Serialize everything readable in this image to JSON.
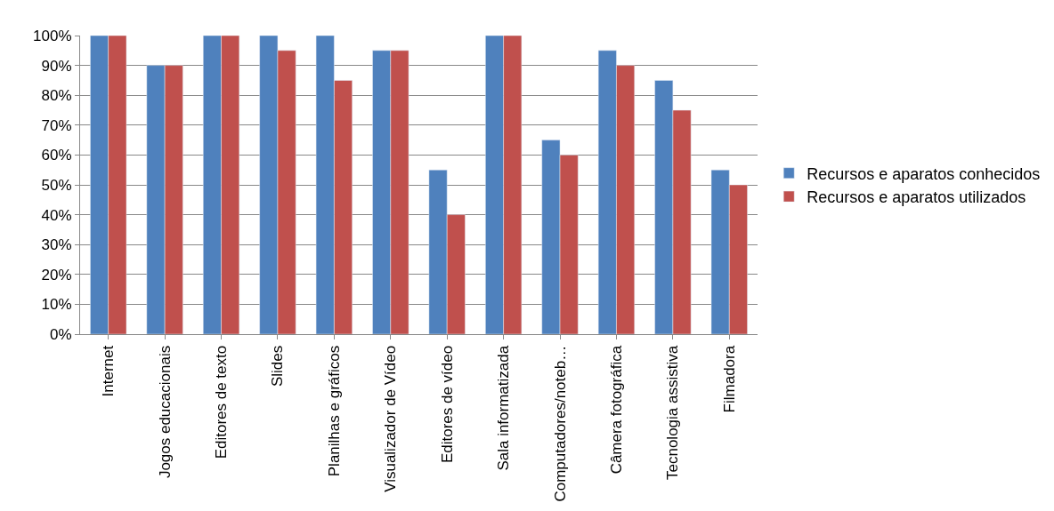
{
  "chart_data": {
    "type": "bar",
    "categories": [
      "Internet",
      "Jogos educacionais",
      "Editores de texto",
      "Slides",
      "Planilhas e gráficos",
      "Visualizador de Vídeo",
      "Editores de vídeo",
      "Sala informatizada",
      "Computadores/noteb…",
      "Câmera fotográfica",
      "Tecnologia assistiva",
      "Filmadora"
    ],
    "series": [
      {
        "name": "Recursos e aparatos conhecidos",
        "color": "#4f81bd",
        "values": [
          100,
          90,
          100,
          100,
          100,
          95,
          55,
          100,
          65,
          95,
          85,
          55
        ]
      },
      {
        "name": "Recursos e aparatos utilizados",
        "color": "#c0504d",
        "values": [
          100,
          90,
          100,
          95,
          85,
          95,
          40,
          100,
          60,
          90,
          75,
          50
        ]
      }
    ],
    "ylim": [
      0,
      100
    ],
    "yticks": [
      {
        "value": 0,
        "label": "0%"
      },
      {
        "value": 10,
        "label": "10%"
      },
      {
        "value": 20,
        "label": "20%"
      },
      {
        "value": 30,
        "label": "30%"
      },
      {
        "value": 40,
        "label": "40%"
      },
      {
        "value": 50,
        "label": "50%"
      },
      {
        "value": 60,
        "label": "60%"
      },
      {
        "value": 70,
        "label": "70%"
      },
      {
        "value": 80,
        "label": "80%"
      },
      {
        "value": 90,
        "label": "90%"
      },
      {
        "value": 100,
        "label": "100%"
      }
    ],
    "grid": "y",
    "legend": "right"
  }
}
